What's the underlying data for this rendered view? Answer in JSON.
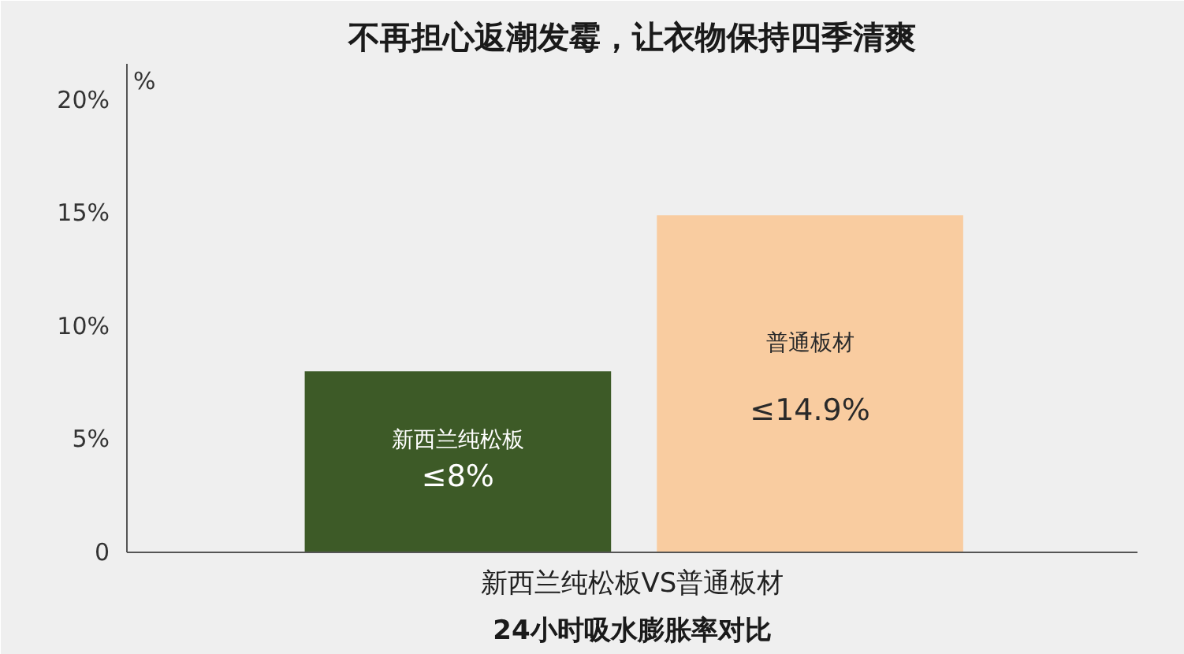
{
  "chart_data": {
    "type": "bar",
    "title": "不再担心返潮发霉，让衣物保持四季清爽",
    "categories": [
      "新西兰纯松板",
      "普通板材"
    ],
    "values": [
      8,
      14.9
    ],
    "colors": [
      "#3d5a27",
      "#f9cca0"
    ],
    "value_labels": [
      "≤8%",
      "≤14.9%"
    ],
    "ylabel": "%",
    "xlabel": "新西兰纯松板VS普通板材",
    "annotations": [
      "24小时吸水膨胀率对比"
    ],
    "ylim": [
      0,
      21.6
    ],
    "yticks": [
      0,
      {
        "value": 5,
        "label": "5%"
      },
      {
        "value": 10,
        "label": "10%"
      },
      {
        "value": 15,
        "label": "15%"
      },
      {
        "value": 20,
        "label": "20%"
      }
    ],
    "grid": false
  }
}
